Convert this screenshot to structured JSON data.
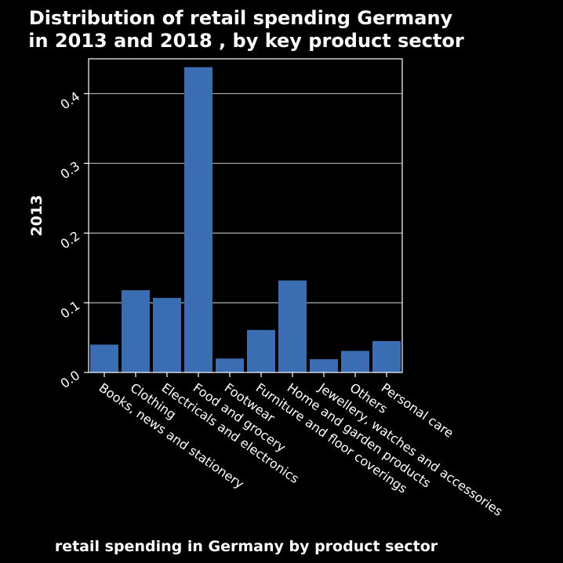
{
  "chart_data": {
    "type": "bar",
    "title_lines": [
      "Distribution of retail spending Germany",
      "in 2013 and 2018 , by key product sector"
    ],
    "xlabel": "retail spending in Germany by product sector",
    "ylabel": "2013",
    "categories": [
      "Books, news and stationery",
      "Clothing",
      "Electricals and electronics",
      "Food and grocery",
      "Footwear",
      "Furniture and floor coverings",
      "Home and garden products",
      "Jewellery, watches and accessories",
      "Others",
      "Personal care"
    ],
    "values": [
      0.04,
      0.118,
      0.107,
      0.438,
      0.02,
      0.061,
      0.132,
      0.019,
      0.031,
      0.045
    ],
    "ylim": [
      0,
      0.45
    ],
    "yticks": [
      0.0,
      0.1,
      0.2,
      0.3,
      0.4
    ],
    "ytick_labels": [
      "0.0",
      "0.1",
      "0.2",
      "0.3",
      "0.4"
    ],
    "grid": true,
    "bar_color": "#3b6db3",
    "background": "#000000",
    "text_color": "#ffffff"
  }
}
